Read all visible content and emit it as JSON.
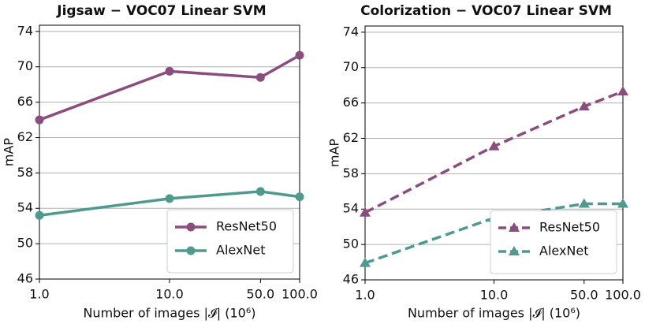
{
  "chart_data": [
    {
      "type": "line",
      "title": "Jigsaw  − VOC07 Linear SVM",
      "x_label": "Number of images |𝓘| (10⁶)",
      "y_label": "mAP",
      "x": [
        1,
        10,
        50,
        100
      ],
      "log_x": true,
      "line_style": "solid",
      "marker": "circle",
      "series": [
        {
          "name": "ResNet50",
          "color": "#8b4d7e",
          "values": [
            64.0,
            69.5,
            68.8,
            71.3
          ]
        },
        {
          "name": "AlexNet",
          "color": "#4e9a8e",
          "values": [
            53.2,
            55.1,
            55.9,
            55.3
          ]
        }
      ],
      "xlim": [
        1,
        100
      ],
      "xticks": [
        {
          "value": 1,
          "label": "1.0"
        },
        {
          "value": 10,
          "label": "10.0"
        },
        {
          "value": 50,
          "label": "50.0"
        },
        {
          "value": 100,
          "label": "100.0"
        }
      ],
      "ylim": [
        46,
        74.7
      ],
      "yticks": [
        46,
        50,
        54,
        58,
        62,
        66,
        70,
        74
      ],
      "grid": true,
      "legend": "lower right"
    },
    {
      "type": "line",
      "title": "Colorization  − VOC07 Linear SVM",
      "x_label": "Number of images |𝓘| (10⁶)",
      "y_label": "mAP",
      "x": [
        1,
        10,
        50,
        100
      ],
      "log_x": true,
      "line_style": "dashed",
      "marker": "triangle",
      "series": [
        {
          "name": "ResNet50",
          "color": "#8b4d7e",
          "values": [
            53.6,
            61.1,
            65.6,
            67.3
          ]
        },
        {
          "name": "AlexNet",
          "color": "#4e9a8e",
          "values": [
            47.9,
            53.0,
            54.6,
            54.6
          ]
        }
      ],
      "xlim": [
        1,
        100
      ],
      "xticks": [
        {
          "value": 1,
          "label": "1.0"
        },
        {
          "value": 10,
          "label": "10.0"
        },
        {
          "value": 50,
          "label": "50.0"
        },
        {
          "value": 100,
          "label": "100.0"
        }
      ],
      "ylim": [
        46,
        74.7
      ],
      "yticks": [
        46,
        50,
        54,
        58,
        62,
        66,
        70,
        74
      ],
      "grid": true,
      "legend": "lower right"
    }
  ]
}
